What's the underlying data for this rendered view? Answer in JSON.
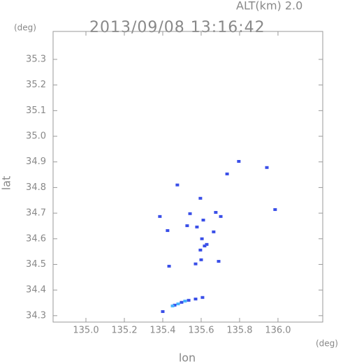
{
  "chart_data": {
    "type": "scatter",
    "title": "2013/09/08 13:16:42",
    "annotation": "ALT(km) 2.0",
    "y_unit": "(deg)",
    "x_unit": "(deg)",
    "x_label": "lon",
    "y_label": "lat",
    "xlim": [
      134.829,
      136.233
    ],
    "ylim": [
      34.275,
      35.409
    ],
    "xticks": [
      {
        "value": 135.0,
        "label": "135.0"
      },
      {
        "value": 135.2,
        "label": "135.2"
      },
      {
        "value": 135.4,
        "label": "135.4"
      },
      {
        "value": 135.6,
        "label": "135.6"
      },
      {
        "value": 135.8,
        "label": "135.8"
      },
      {
        "value": 136.0,
        "label": "136.0"
      }
    ],
    "yticks": [
      {
        "value": 34.3,
        "label": "34.3"
      },
      {
        "value": 34.4,
        "label": "34.4"
      },
      {
        "value": 34.5,
        "label": "34.5"
      },
      {
        "value": 34.6,
        "label": "34.6"
      },
      {
        "value": 34.7,
        "label": "34.7"
      },
      {
        "value": 34.8,
        "label": "34.8"
      },
      {
        "value": 34.9,
        "label": "34.9"
      },
      {
        "value": 35.0,
        "label": "35.0"
      },
      {
        "value": 35.1,
        "label": "35.1"
      },
      {
        "value": 35.2,
        "label": "35.2"
      },
      {
        "value": 35.3,
        "label": "35.3"
      }
    ],
    "series": [
      {
        "color": "#3a4fe8",
        "x": [
          135.796,
          135.942,
          135.735,
          135.476,
          135.596,
          135.385,
          135.542,
          135.676,
          135.702,
          135.985,
          135.425,
          135.611,
          135.578,
          135.527,
          135.665,
          135.604,
          135.618,
          135.596,
          135.629,
          135.6,
          135.571,
          135.433,
          135.691,
          135.4,
          135.462,
          135.498,
          135.535,
          135.571,
          135.607
        ],
        "values": [
          34.902,
          34.878,
          34.853,
          34.81,
          34.758,
          34.687,
          34.698,
          34.703,
          34.687,
          34.714,
          34.632,
          34.673,
          34.646,
          34.651,
          34.627,
          34.6,
          34.572,
          34.556,
          34.578,
          34.518,
          34.502,
          34.493,
          34.512,
          34.316,
          34.341,
          34.352,
          34.36,
          34.365,
          34.371
        ]
      },
      {
        "color": "#48b4ff",
        "x": [
          135.48,
          135.516,
          135.451
        ],
        "values": [
          34.346,
          34.357,
          34.338
        ]
      }
    ]
  }
}
